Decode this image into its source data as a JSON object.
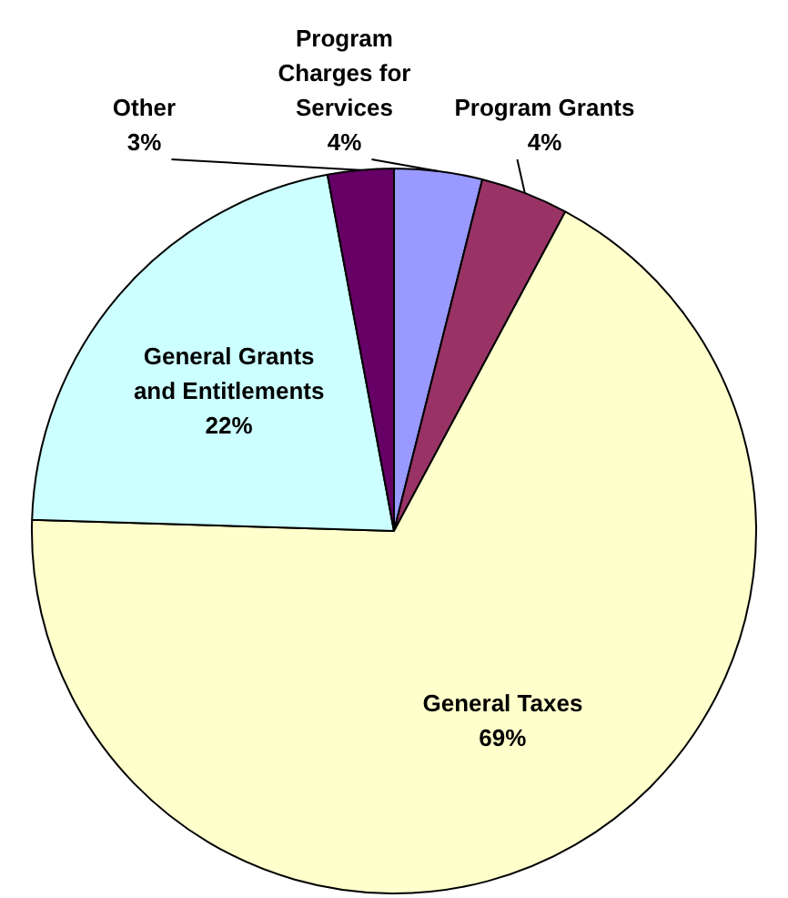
{
  "chart_data": {
    "type": "pie",
    "categories": [
      "Program Charges for Services",
      "Program Grants",
      "General Taxes",
      "General Grants and Entitlements",
      "Other"
    ],
    "values": [
      4,
      4,
      69,
      22,
      3
    ],
    "value_labels": [
      "4%",
      "4%",
      "69%",
      "22%",
      "3%"
    ],
    "colors": [
      "#9999ff",
      "#993366",
      "#ffffcc",
      "#ccffff",
      "#660066"
    ],
    "legend": false
  }
}
